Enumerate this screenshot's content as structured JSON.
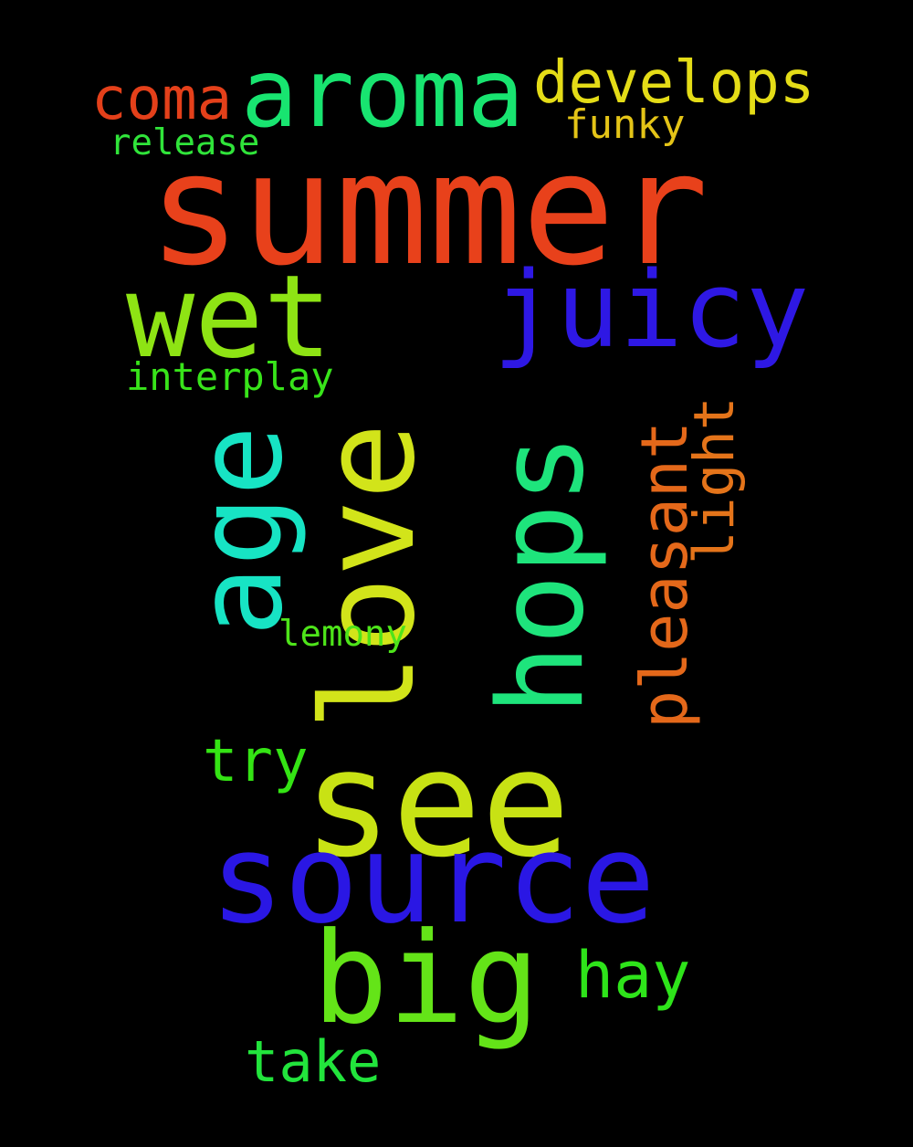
{
  "words": [
    {
      "text": "summer",
      "color": "#e8411b"
    },
    {
      "text": "love",
      "color": "#d2e41a"
    },
    {
      "text": "see",
      "color": "#c8e214"
    },
    {
      "text": "source",
      "color": "#2a17e4"
    },
    {
      "text": "hops",
      "color": "#1ee47c"
    },
    {
      "text": "big",
      "color": "#64e418"
    },
    {
      "text": "wet",
      "color": "#8ee414"
    },
    {
      "text": "age",
      "color": "#17e4c4"
    },
    {
      "text": "juicy",
      "color": "#2e18e4"
    },
    {
      "text": "aroma",
      "color": "#18e470"
    },
    {
      "text": "pleasant",
      "color": "#e4681a"
    },
    {
      "text": "hay",
      "color": "#2ee41a"
    },
    {
      "text": "develops",
      "color": "#e4dc17"
    },
    {
      "text": "take",
      "color": "#22e43c"
    },
    {
      "text": "try",
      "color": "#34e414"
    },
    {
      "text": "coma",
      "color": "#e4401a"
    },
    {
      "text": "light",
      "color": "#e4741a"
    },
    {
      "text": "funky",
      "color": "#e4c417"
    },
    {
      "text": "interplay",
      "color": "#38e41a"
    },
    {
      "text": "lemony",
      "color": "#4ee41a"
    },
    {
      "text": "release",
      "color": "#30e43a"
    }
  ]
}
